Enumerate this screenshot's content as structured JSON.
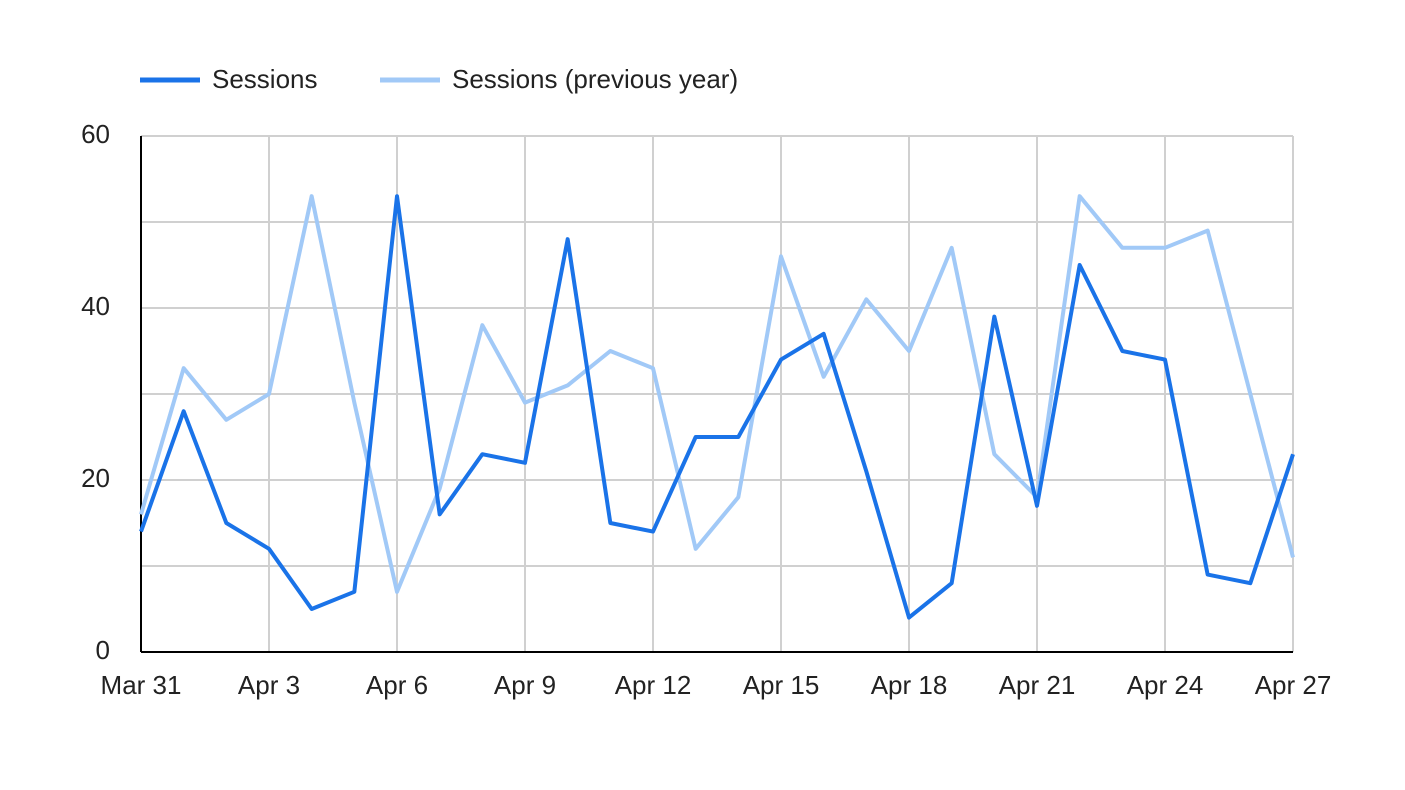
{
  "chart_data": {
    "type": "line",
    "categories": [
      "Mar 31",
      null,
      null,
      "Apr 3",
      null,
      null,
      "Apr 6",
      null,
      null,
      "Apr 9",
      null,
      null,
      "Apr 12",
      null,
      null,
      "Apr 15",
      null,
      null,
      "Apr 18",
      null,
      null,
      "Apr 21",
      null,
      null,
      "Apr 24",
      null,
      null,
      "Apr 27"
    ],
    "series": [
      {
        "name": "Sessions",
        "color": "#1a73e8",
        "values": [
          14,
          28,
          15,
          12,
          5,
          7,
          53,
          16,
          23,
          22,
          48,
          15,
          14,
          25,
          25,
          34,
          37,
          21,
          4,
          8,
          39,
          17,
          45,
          35,
          34,
          9,
          8,
          23
        ]
      },
      {
        "name": "Sessions (previous year)",
        "color": "#a1c9f7",
        "values": [
          16,
          33,
          27,
          30,
          53,
          29,
          7,
          19,
          38,
          29,
          31,
          35,
          33,
          12,
          18,
          46,
          32,
          41,
          35,
          47,
          23,
          18,
          53,
          47,
          47,
          49,
          30,
          11
        ]
      }
    ],
    "ylim": [
      0,
      60
    ],
    "yticks": [
      0,
      20,
      40,
      60
    ],
    "y_minor_grid": [
      10,
      30,
      50
    ],
    "grid": true,
    "legend": "top-left"
  }
}
